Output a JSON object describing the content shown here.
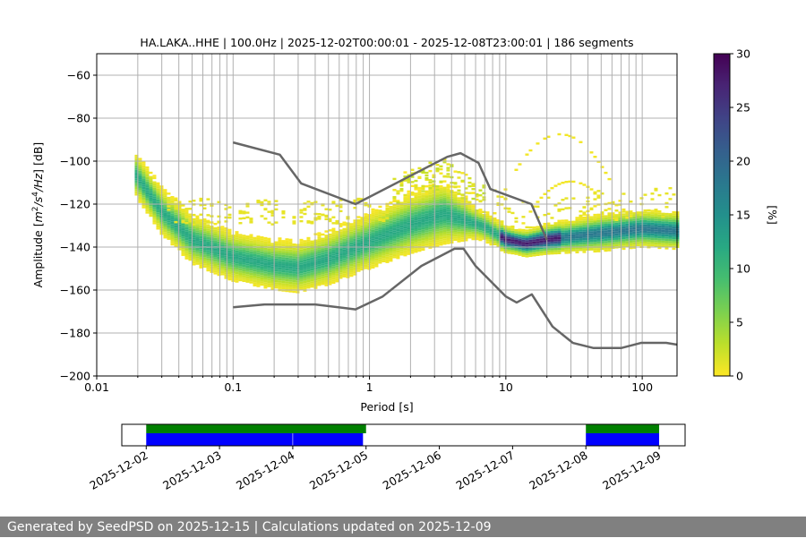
{
  "chart_data": [
    {
      "type": "heatmap",
      "title": "HA.LAKA..HHE | 100.0Hz | 2025-12-02T00:00:01 - 2025-12-08T23:00:01 | 186 segments",
      "xlabel": "Period [s]",
      "ylabel": "Amplitude [m²/s⁴/Hz] [dB]",
      "xscale": "log",
      "xlim": [
        0.01,
        180
      ],
      "ylim": [
        -200,
        -50
      ],
      "grid": true,
      "xticks": [
        {
          "v": 0.01,
          "label": "0.01"
        },
        {
          "v": 0.1,
          "label": "0.1"
        },
        {
          "v": 1,
          "label": "1"
        },
        {
          "v": 10,
          "label": "10"
        },
        {
          "v": 100,
          "label": "100"
        }
      ],
      "yticks": [
        {
          "v": -60,
          "label": "−60"
        },
        {
          "v": -80,
          "label": "−80"
        },
        {
          "v": -100,
          "label": "−100"
        },
        {
          "v": -120,
          "label": "−120"
        },
        {
          "v": -140,
          "label": "−140"
        },
        {
          "v": -160,
          "label": "−160"
        },
        {
          "v": -180,
          "label": "−180"
        },
        {
          "v": -200,
          "label": "−200"
        }
      ],
      "colorbar": {
        "label": "[%]",
        "range": [
          0,
          30
        ],
        "ticks": [
          {
            "v": 0,
            "label": "0"
          },
          {
            "v": 5,
            "label": "5"
          },
          {
            "v": 10,
            "label": "10"
          },
          {
            "v": 15,
            "label": "15"
          },
          {
            "v": 20,
            "label": "20"
          },
          {
            "v": 25,
            "label": "25"
          },
          {
            "v": 30,
            "label": "30"
          }
        ],
        "colormap": "viridis_r"
      },
      "pdf_mode": [
        [
          0.019,
          -106
        ],
        [
          0.03,
          -124
        ],
        [
          0.05,
          -137
        ],
        [
          0.1,
          -145
        ],
        [
          0.2,
          -149
        ],
        [
          0.3,
          -150
        ],
        [
          0.5,
          -146
        ],
        [
          1,
          -138
        ],
        [
          2,
          -130
        ],
        [
          3.5,
          -125
        ],
        [
          5,
          -128
        ],
        [
          7,
          -131
        ],
        [
          10,
          -137
        ],
        [
          14,
          -139
        ],
        [
          20,
          -137
        ],
        [
          50,
          -134
        ],
        [
          100,
          -132
        ],
        [
          180,
          -133
        ]
      ],
      "pdf_spread_db": [
        [
          0.019,
          7
        ],
        [
          0.05,
          8
        ],
        [
          0.2,
          8
        ],
        [
          1,
          9
        ],
        [
          3.5,
          10
        ],
        [
          6,
          5
        ],
        [
          12,
          4
        ],
        [
          50,
          6
        ],
        [
          180,
          6
        ]
      ],
      "noise_model_high": [
        [
          0.1,
          -91.3
        ],
        [
          0.22,
          -97
        ],
        [
          0.316,
          -110.4
        ],
        [
          0.79,
          -120
        ],
        [
          3.72,
          -98
        ],
        [
          4.65,
          -96.3
        ],
        [
          6.3,
          -100.8
        ],
        [
          7.7,
          -113
        ],
        [
          15.4,
          -120
        ],
        [
          20,
          -136.7
        ]
      ],
      "noise_model_low": [
        [
          0.1,
          -168
        ],
        [
          0.17,
          -166.7
        ],
        [
          0.4,
          -166.7
        ],
        [
          0.79,
          -169
        ],
        [
          1.25,
          -163
        ],
        [
          2.4,
          -148.8
        ],
        [
          4.2,
          -140.8
        ],
        [
          4.9,
          -140.8
        ],
        [
          6.0,
          -148.8
        ],
        [
          10,
          -163
        ],
        [
          12,
          -165.8
        ],
        [
          15.5,
          -162
        ],
        [
          22,
          -177
        ],
        [
          31,
          -184.6
        ],
        [
          44,
          -187
        ],
        [
          70,
          -187
        ],
        [
          98,
          -184.6
        ],
        [
          150,
          -184.6
        ],
        [
          180,
          -185.4
        ]
      ]
    },
    {
      "type": "timeline",
      "xlim": [
        "2025-12-01T16:00",
        "2025-12-09T08:30"
      ],
      "ticks": [
        "2025-12-02",
        "2025-12-03",
        "2025-12-04",
        "2025-12-05",
        "2025-12-06",
        "2025-12-07",
        "2025-12-08",
        "2025-12-09"
      ],
      "data_available": [
        [
          "2025-12-02T00:00",
          "2025-12-05T00:00"
        ],
        [
          "2025-12-08T00:00",
          "2025-12-09T00:00"
        ]
      ],
      "psd_segments": [
        [
          "2025-12-02T00:00",
          "2025-12-03T23:55"
        ],
        [
          "2025-12-04T00:05",
          "2025-12-04T23:00"
        ],
        [
          "2025-12-08T00:00",
          "2025-12-08T23:59"
        ]
      ],
      "colors": {
        "available": "#008000",
        "segments": "#0000ff"
      }
    }
  ],
  "footer": "Generated by SeedPSD on 2025-12-15 | Calculations updated on 2025-12-09"
}
